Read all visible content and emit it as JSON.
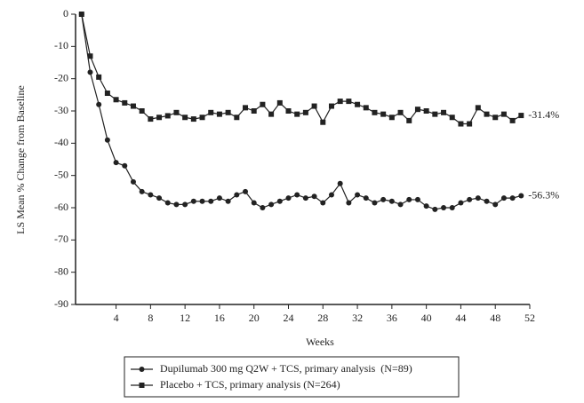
{
  "chart_data": {
    "type": "line",
    "x_label": "Weeks",
    "y_label": "LS Mean % Change from Baseline",
    "x": [
      0,
      1,
      2,
      3,
      4,
      5,
      6,
      7,
      8,
      9,
      10,
      11,
      12,
      13,
      14,
      15,
      16,
      17,
      18,
      19,
      20,
      21,
      22,
      23,
      24,
      25,
      26,
      27,
      28,
      29,
      30,
      31,
      32,
      33,
      34,
      35,
      36,
      37,
      38,
      39,
      40,
      41,
      42,
      43,
      44,
      45,
      46,
      47,
      48,
      49,
      50,
      51
    ],
    "xlim": [
      -0.7,
      52
    ],
    "xticks": [
      4,
      8,
      12,
      16,
      20,
      24,
      28,
      32,
      36,
      40,
      44,
      48,
      52
    ],
    "ylim": [
      -90,
      0
    ],
    "yticks": [
      0,
      -10,
      -20,
      -30,
      -40,
      -50,
      -60,
      -70,
      -80,
      -90
    ],
    "series": [
      {
        "name": "Dupilumab 300 mg Q2W + TCS, primary analysis  (N=89)",
        "color": "#222222",
        "marker": "circle",
        "end_label": "-56.3%",
        "values": [
          0,
          -18,
          -28,
          -39,
          -46,
          -47,
          -52,
          -55,
          -56,
          -57,
          -58.5,
          -59,
          -59,
          -58,
          -58,
          -58,
          -57,
          -58,
          -56,
          -55,
          -58.5,
          -60,
          -59,
          -58,
          -57,
          -56,
          -57,
          -56.5,
          -58.5,
          -56,
          -52.5,
          -58.5,
          -56,
          -57,
          -58.5,
          -57.5,
          -58,
          -59,
          -57.5,
          -57.5,
          -59.5,
          -60.5,
          -60,
          -60,
          -58.5,
          -57.5,
          -57,
          -58,
          -59,
          -57,
          -57,
          -56.3
        ]
      },
      {
        "name": "Placebo + TCS, primary analysis (N=264)",
        "color": "#222222",
        "marker": "square",
        "end_label": "-31.4%",
        "values": [
          0,
          -13,
          -19.5,
          -24.5,
          -26.5,
          -27.5,
          -28.5,
          -30,
          -32.5,
          -32,
          -31.5,
          -30.5,
          -32,
          -32.5,
          -32,
          -30.5,
          -31,
          -30.5,
          -32,
          -29,
          -30,
          -28,
          -31,
          -27.5,
          -30,
          -31,
          -30.5,
          -28.5,
          -33.5,
          -28.5,
          -27,
          -27,
          -28,
          -29,
          -30.5,
          -31,
          -32,
          -30.5,
          -33,
          -29.5,
          -30,
          -31,
          -30.5,
          -32,
          -34,
          -34,
          -29,
          -31,
          -32,
          -31,
          -33,
          -31.4
        ]
      }
    ]
  }
}
